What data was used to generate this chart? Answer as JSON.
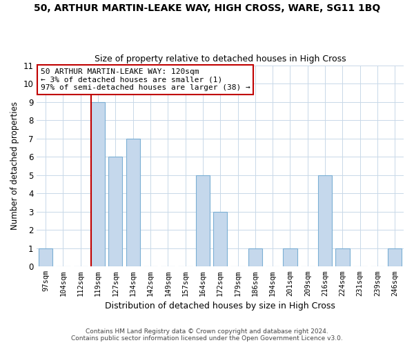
{
  "title_line1": "50, ARTHUR MARTIN-LEAKE WAY, HIGH CROSS, WARE, SG11 1BQ",
  "title_line2": "Size of property relative to detached houses in High Cross",
  "xlabel": "Distribution of detached houses by size in High Cross",
  "ylabel": "Number of detached properties",
  "categories": [
    "97sqm",
    "104sqm",
    "112sqm",
    "119sqm",
    "127sqm",
    "134sqm",
    "142sqm",
    "149sqm",
    "157sqm",
    "164sqm",
    "172sqm",
    "179sqm",
    "186sqm",
    "194sqm",
    "201sqm",
    "209sqm",
    "216sqm",
    "224sqm",
    "231sqm",
    "239sqm",
    "246sqm"
  ],
  "values": [
    1,
    0,
    0,
    9,
    6,
    7,
    0,
    0,
    0,
    5,
    3,
    0,
    1,
    0,
    1,
    0,
    5,
    1,
    0,
    0,
    1
  ],
  "bar_color": "#c5d8ec",
  "bar_edge_color": "#7bafd4",
  "highlight_bar_index": 3,
  "highlight_color": "#c00000",
  "ylim": [
    0,
    11
  ],
  "yticks": [
    0,
    1,
    2,
    3,
    4,
    5,
    6,
    7,
    8,
    9,
    10,
    11
  ],
  "annotation_box_text_line1": "50 ARTHUR MARTIN-LEAKE WAY: 120sqm",
  "annotation_box_text_line2": "← 3% of detached houses are smaller (1)",
  "annotation_box_text_line3": "97% of semi-detached houses are larger (38) →",
  "footer_line1": "Contains HM Land Registry data © Crown copyright and database right 2024.",
  "footer_line2": "Contains public sector information licensed under the Open Government Licence v3.0.",
  "background_color": "#ffffff",
  "grid_color": "#c8d8e8"
}
